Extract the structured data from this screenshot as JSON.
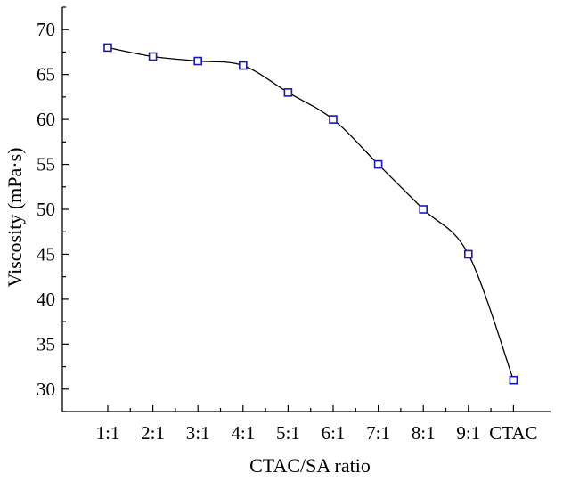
{
  "chart_data": {
    "type": "line",
    "categories": [
      "1:1",
      "2:1",
      "3:1",
      "4:1",
      "5:1",
      "6:1",
      "7:1",
      "8:1",
      "9:1",
      "CTAC"
    ],
    "values": [
      68,
      67,
      66.5,
      66,
      63,
      60,
      55,
      50,
      45,
      31
    ],
    "xlabel": "CTAC/SA ratio",
    "ylabel": "Viscosity (mPa·s)",
    "ylim": [
      27.5,
      72.5
    ],
    "yticks": [
      30,
      35,
      40,
      45,
      50,
      55,
      60,
      65,
      70
    ],
    "grid": false,
    "legend": "none",
    "marker": "open-square",
    "marker_color": "#1a1ab0",
    "line_style": "smooth"
  }
}
